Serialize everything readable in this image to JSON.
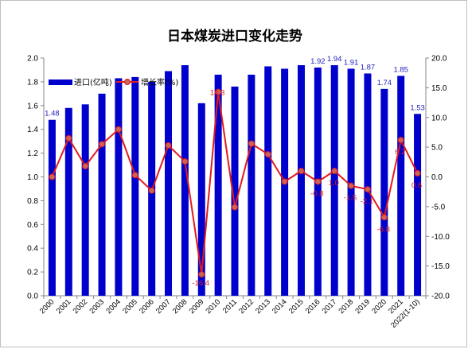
{
  "chart_data": {
    "type": "bar",
    "title": "日本煤炭进口变化走势",
    "categories": [
      "2000",
      "2001",
      "2002",
      "2003",
      "2004",
      "2005",
      "2006",
      "2007",
      "2008",
      "2009",
      "2010",
      "2011",
      "2012",
      "2013",
      "2014",
      "2015",
      "2016",
      "2017",
      "2018",
      "2019",
      "2020",
      "2021",
      "2022(1-10)"
    ],
    "series": [
      {
        "name": "进口(亿吨)",
        "type": "bar",
        "axis": "left",
        "color": "#0000cc",
        "values": [
          1.48,
          1.58,
          1.61,
          1.7,
          1.83,
          1.84,
          1.8,
          1.89,
          1.94,
          1.62,
          1.86,
          1.76,
          1.86,
          1.93,
          1.91,
          1.94,
          1.92,
          1.94,
          1.91,
          1.87,
          1.74,
          1.85,
          1.53
        ],
        "data_labels": {
          "0": "1.48",
          "16": "1.92",
          "17": "1.94",
          "18": "1.91",
          "19": "1.87",
          "20": "1.74",
          "21": "1.85",
          "22": "1.53"
        }
      },
      {
        "name": "增长率(%)",
        "type": "line",
        "axis": "right",
        "color": "#e31a1c",
        "values": [
          0.0,
          6.5,
          1.8,
          5.5,
          8.0,
          0.3,
          -2.3,
          5.3,
          2.6,
          -16.4,
          14.3,
          -5.1,
          5.6,
          3.8,
          -0.8,
          1.0,
          -0.8,
          1.0,
          -1.5,
          -2.1,
          -6.8,
          6.2,
          0.6
        ],
        "data_labels": {
          "9": "-16.4",
          "10": "14.3",
          "16": "-0.8",
          "17": "1.0",
          "18": "-1.5",
          "19": "-2.1",
          "20": "-6.8",
          "21": "6.2",
          "22": "0.6"
        }
      }
    ],
    "y_left": {
      "min": 0.0,
      "max": 2.0,
      "step": 0.2,
      "decimals": 1
    },
    "y_right": {
      "min": -20.0,
      "max": 20.0,
      "step": 5.0,
      "decimals": 1
    },
    "legend": {
      "position": "top-left-inside"
    },
    "grid": false
  }
}
